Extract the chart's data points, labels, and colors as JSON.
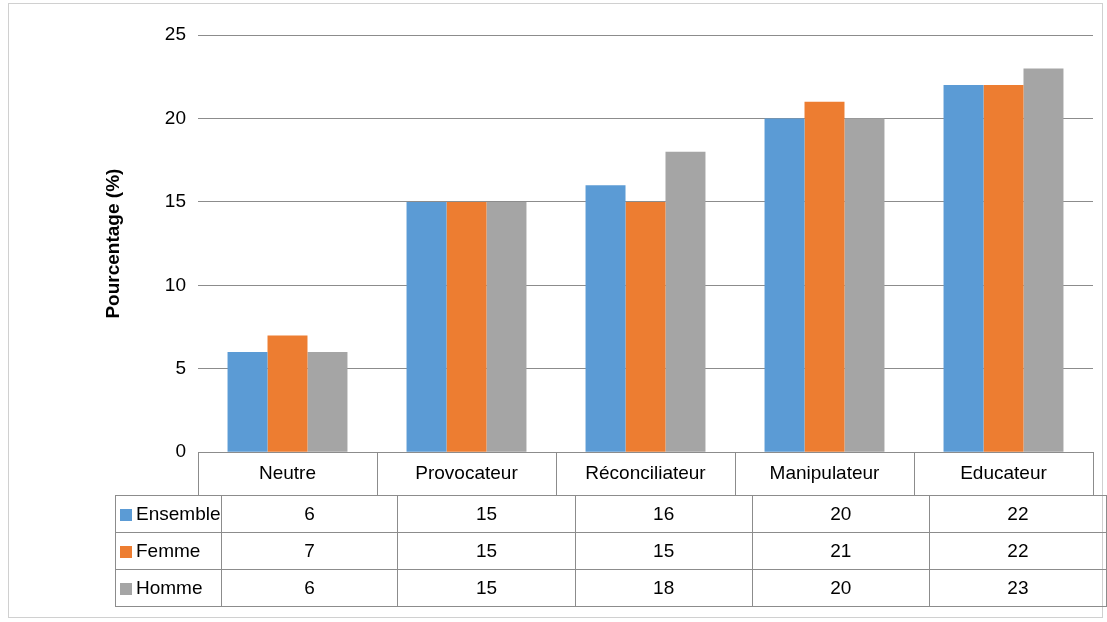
{
  "chart_data": {
    "type": "bar",
    "ylabel": "Pourcentage (%)",
    "categories": [
      "Neutre",
      "Provocateur",
      "Réconciliateur",
      "Manipulateur",
      "Educateur"
    ],
    "series": [
      {
        "name": "Ensemble",
        "color": "#5b9bd5",
        "values": [
          6,
          15,
          16,
          20,
          22
        ]
      },
      {
        "name": "Femme",
        "color": "#ed7d31",
        "values": [
          7,
          15,
          15,
          21,
          22
        ]
      },
      {
        "name": "Homme",
        "color": "#a5a5a5",
        "values": [
          6,
          15,
          18,
          20,
          23
        ]
      }
    ],
    "ylim": [
      0,
      25
    ],
    "yticks": [
      0,
      5,
      10,
      15,
      20,
      25
    ],
    "grid": "y",
    "legend": "bottom",
    "data_labels": true
  }
}
